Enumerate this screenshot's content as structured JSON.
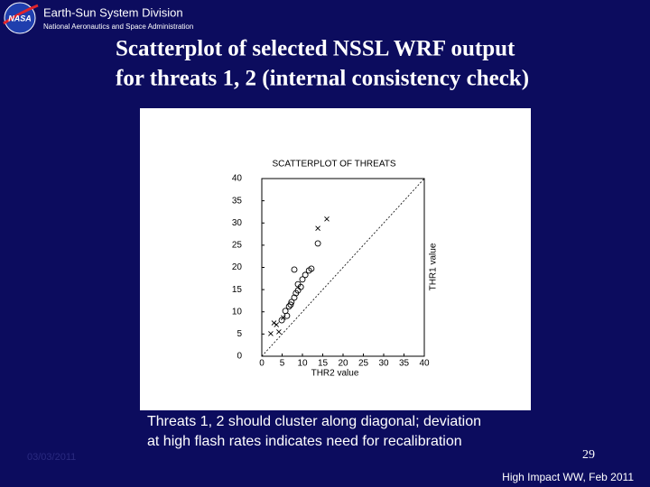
{
  "header": {
    "division": "Earth-Sun System Division",
    "agency": "National Aeronautics and Space Administration"
  },
  "title_lines": [
    "Scatterplot of selected NSSL WRF output",
    "for threats 1, 2 (internal consistency check)"
  ],
  "caption_lines": [
    "Threats 1, 2 should cluster along diagonal; deviation",
    "at high flash rates indicates need for recalibration"
  ],
  "date": "03/03/2011",
  "page_number": "29",
  "footer": "High Impact WW, Feb 2011",
  "chart_data": {
    "type": "scatter",
    "title": "SCATTERPLOT OF THREATS",
    "x_label": "THR2 value",
    "y_label": "THR1 value",
    "xlim": [
      0,
      40
    ],
    "ylim": [
      0,
      40
    ],
    "xticks": [
      0,
      5,
      10,
      15,
      20,
      25,
      30,
      35,
      40
    ],
    "yticks": [
      0,
      5,
      10,
      15,
      20,
      25,
      30,
      35,
      40
    ],
    "diagonal": true,
    "series": [
      {
        "marker": "x",
        "color": "#000000",
        "x": [
          16,
          13.8,
          2.2,
          4.2,
          3,
          3.6,
          5.3
        ],
        "values": [
          30.9,
          28.8,
          5.1,
          5.5,
          7.5,
          7.1,
          8.7
        ]
      },
      {
        "marker": "circle",
        "color": "#000000",
        "x": [
          8,
          13.8,
          5.8,
          6.7,
          7.3,
          8,
          8.9,
          9.6,
          10.7,
          11.6,
          10,
          8.4,
          6.2,
          4.9,
          7.1,
          8.9,
          12.2
        ],
        "values": [
          19.5,
          25.4,
          10.2,
          11.2,
          12.2,
          13.2,
          14.8,
          15.6,
          18.3,
          19.3,
          17.3,
          14.2,
          9.1,
          8.1,
          11.6,
          16.2,
          19.7
        ]
      }
    ]
  }
}
